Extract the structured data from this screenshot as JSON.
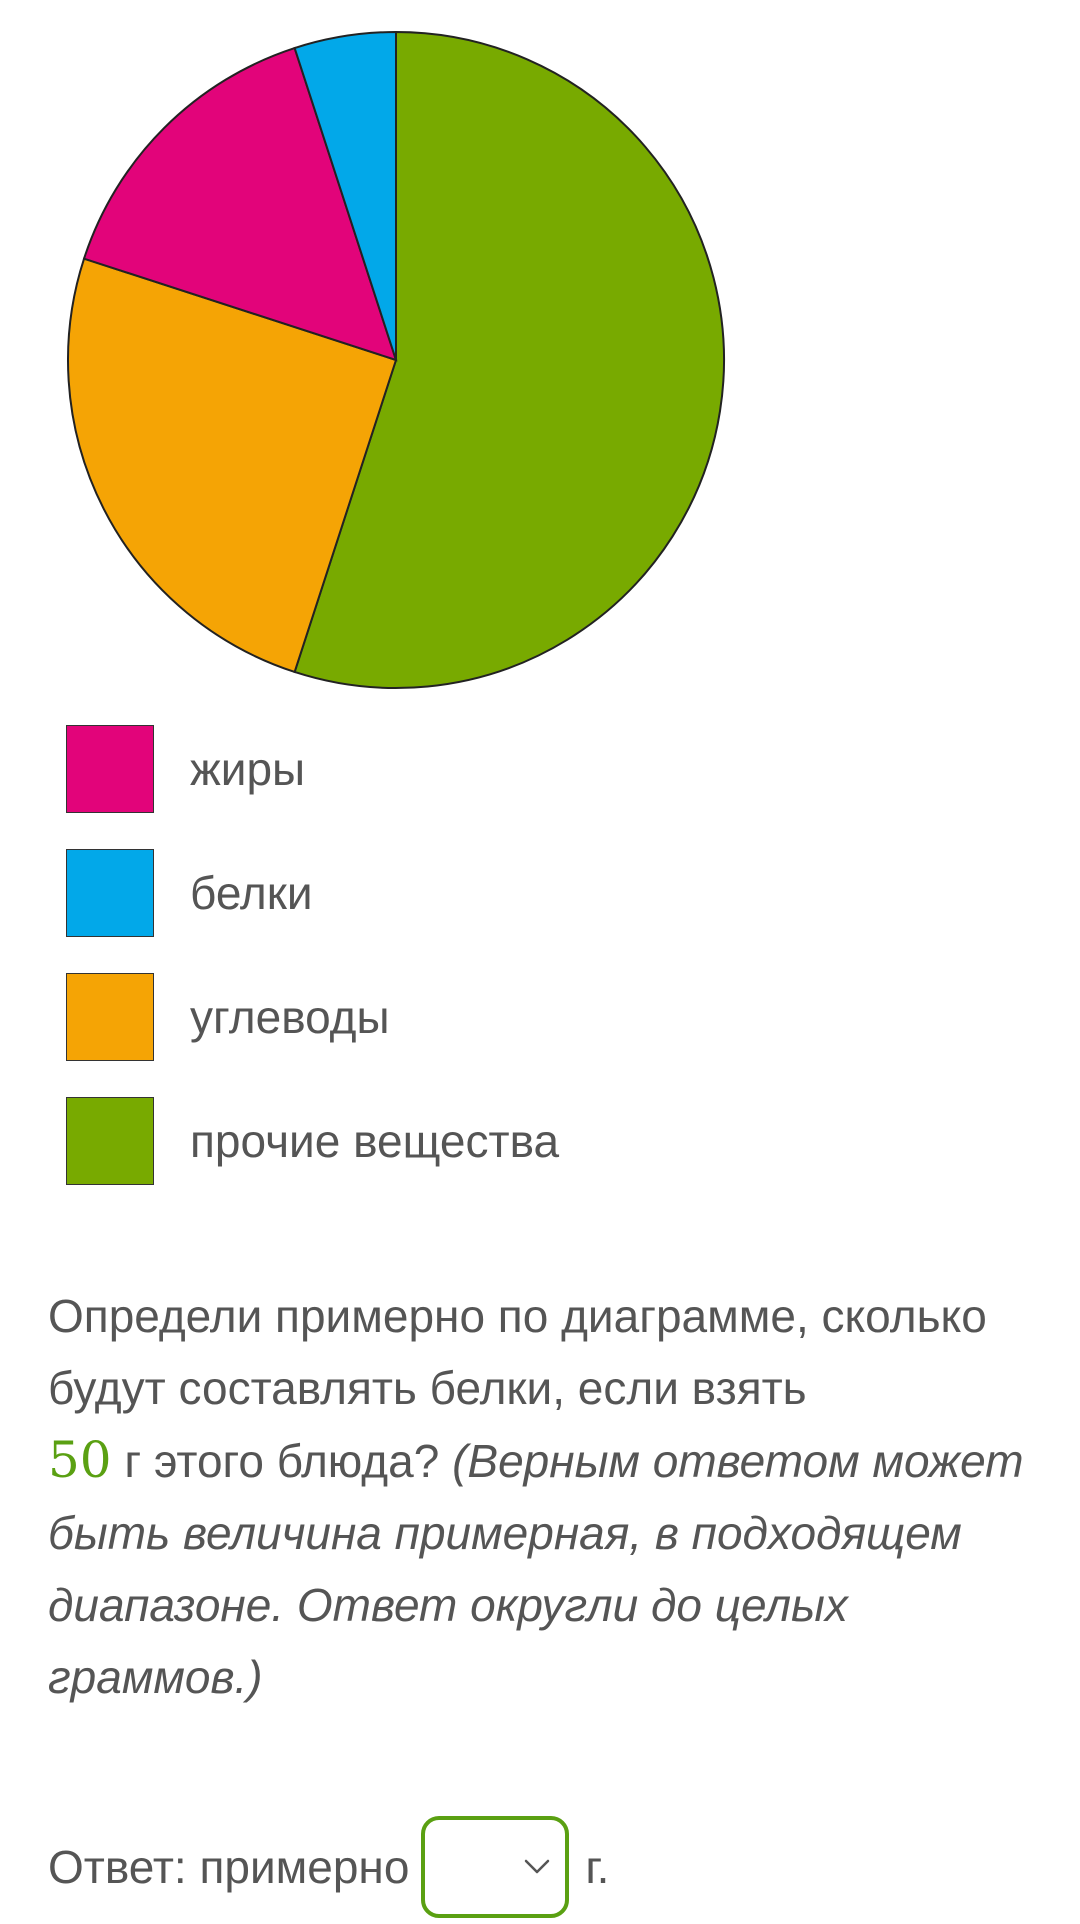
{
  "chart_data": {
    "type": "pie",
    "title": "",
    "slices": [
      {
        "label": "прочие вещества",
        "value": 55,
        "color": "#78aa00"
      },
      {
        "label": "углеводы",
        "value": 25,
        "color": "#f5a405"
      },
      {
        "label": "жиры",
        "value": 15,
        "color": "#e2047a"
      },
      {
        "label": "белки",
        "value": 5,
        "color": "#02a8e9"
      }
    ],
    "legend": [
      {
        "label": "жиры",
        "color": "#e2047a"
      },
      {
        "label": "белки",
        "color": "#02a8e9"
      },
      {
        "label": "углеводы",
        "color": "#f5a405"
      },
      {
        "label": "прочие вещества",
        "color": "#78aa00"
      }
    ],
    "legend_placement": "below"
  },
  "question": {
    "line1": "Определи примерно по диаграмме, сколько будут составлять белки, если взять",
    "amount": "50",
    "line2": " г этого блюда? ",
    "hint": "(Верным ответом может быть величина примерная, в подходящем диапазоне. Ответ округли до целых граммов.)"
  },
  "answer": {
    "prefix": "Ответ: примерно",
    "selected_value": "",
    "unit": "г."
  },
  "colors": {
    "accent": "#5aa012",
    "text": "#555555"
  }
}
